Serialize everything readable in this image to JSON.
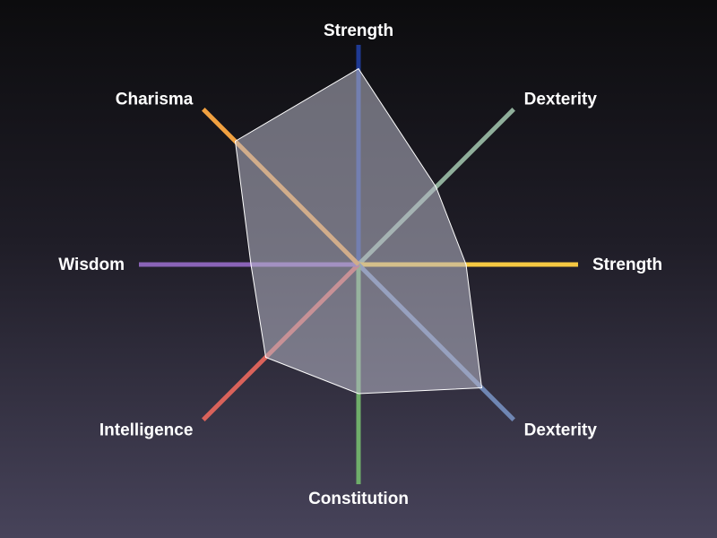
{
  "chart_data": {
    "type": "radar",
    "axes": [
      {
        "label": "Strength",
        "value": 0.91,
        "color": "#1f3a93"
      },
      {
        "label": "Dexterity",
        "value": 0.51,
        "color": "#8fae9a"
      },
      {
        "label": "Strength",
        "value": 0.5,
        "color": "#f5c842"
      },
      {
        "label": "Dexterity",
        "value": 0.81,
        "color": "#6f86b3"
      },
      {
        "label": "Constitution",
        "value": 0.6,
        "color": "#6fae6a"
      },
      {
        "label": "Intelligence",
        "value": 0.61,
        "color": "#d9625a"
      },
      {
        "label": "Wisdom",
        "value": 0.5,
        "color": "#8a63b8"
      },
      {
        "label": "Charisma",
        "value": 0.81,
        "color": "#f0a040"
      }
    ],
    "range": [
      0,
      1
    ],
    "polygon_fill": "#b8b8c8",
    "polygon_stroke": "#ffffff",
    "grid": false,
    "legend": "none"
  }
}
